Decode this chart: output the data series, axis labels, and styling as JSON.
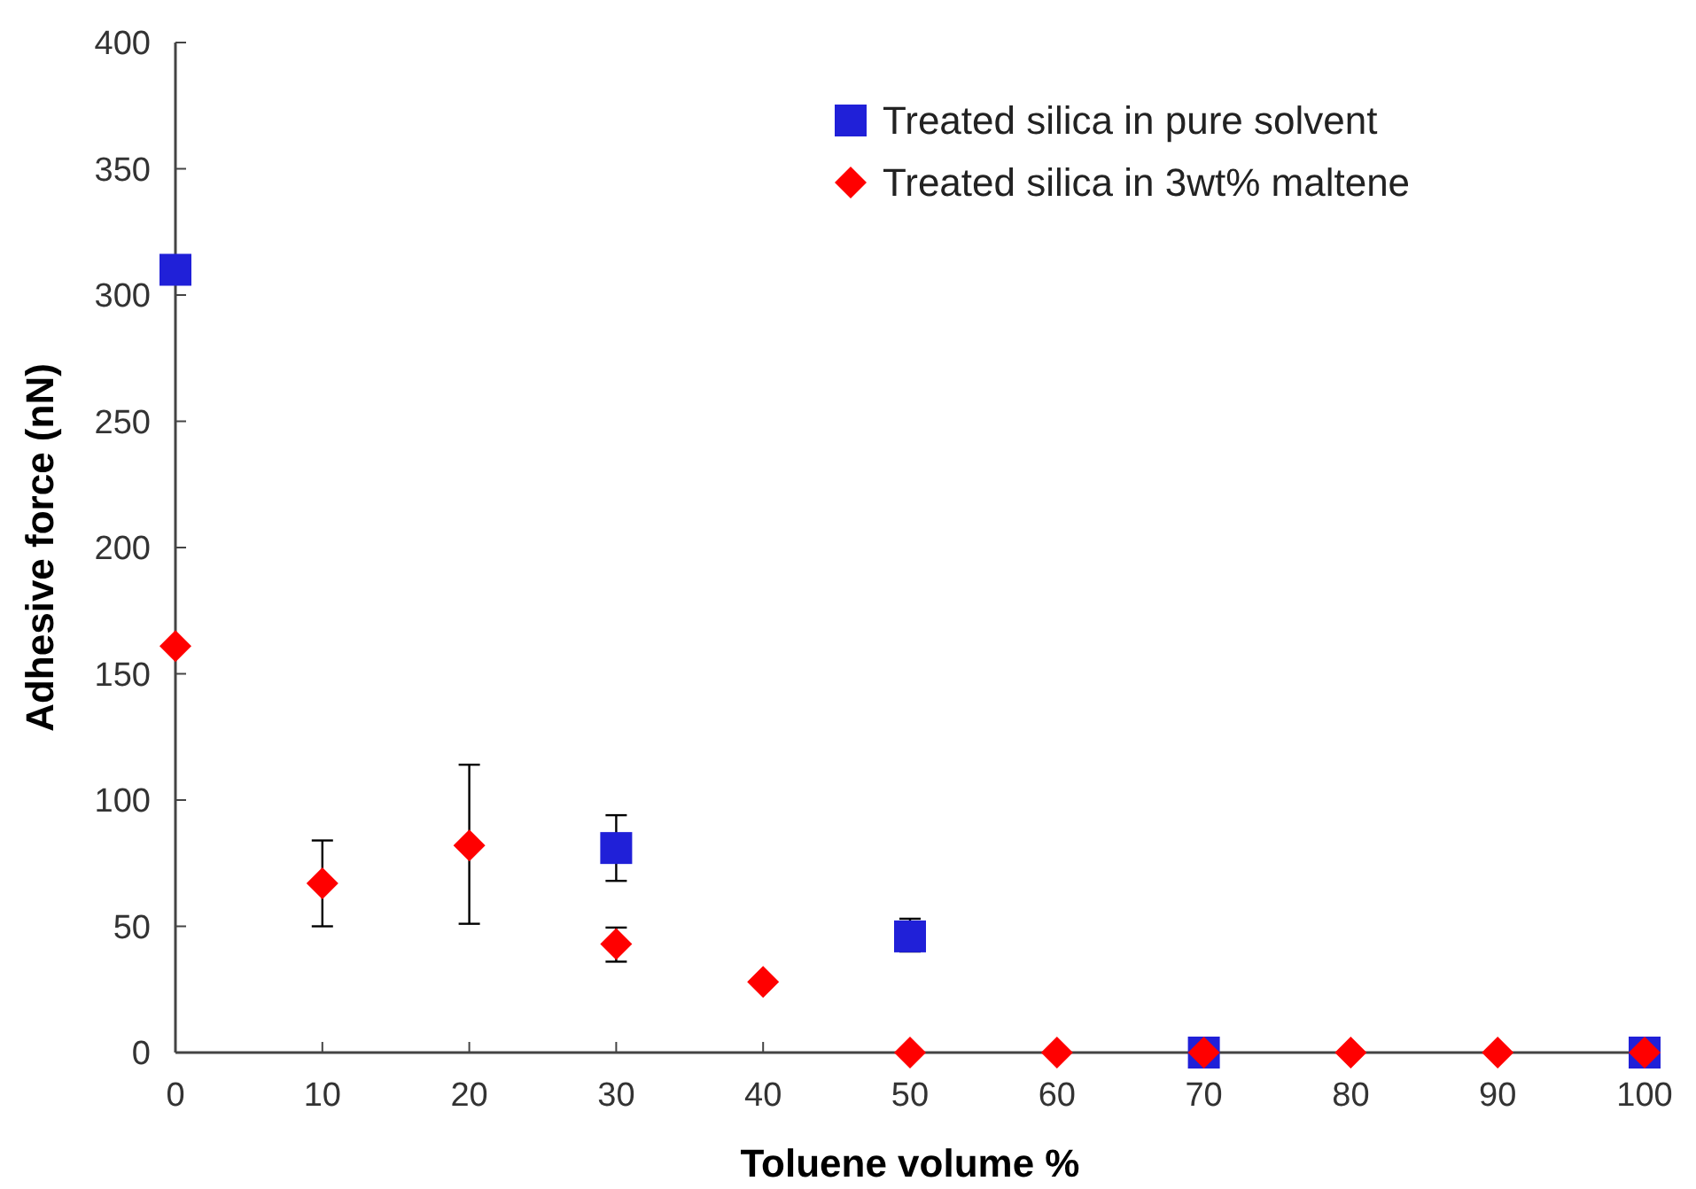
{
  "chart_data": {
    "type": "scatter",
    "xlabel": "Toluene volume %",
    "ylabel": "Adhesive force (nN)",
    "xlim": [
      0,
      100
    ],
    "xticks": [
      0,
      10,
      20,
      30,
      40,
      50,
      60,
      70,
      80,
      90,
      100
    ],
    "ylim": [
      0,
      400
    ],
    "yticks": [
      0,
      50,
      100,
      150,
      200,
      250,
      300,
      350,
      400
    ],
    "grid": false,
    "legend": "top right",
    "series": [
      {
        "name": "Treated silica in pure solvent",
        "color": "#2020d8",
        "marker": "square",
        "x": [
          0,
          30,
          50,
          70,
          100
        ],
        "values": [
          310,
          81,
          46,
          0,
          0
        ],
        "errors": [
          null,
          [
            68,
            94
          ],
          [
            40,
            53
          ],
          null,
          null
        ]
      },
      {
        "name": "Treated silica in 3wt% maltene",
        "color": "#ff0000",
        "marker": "diamond",
        "x": [
          0,
          10,
          20,
          30,
          40,
          50,
          60,
          70,
          80,
          90,
          100
        ],
        "values": [
          161,
          67,
          82,
          43,
          28,
          0,
          0,
          0,
          0,
          0,
          0
        ],
        "errors": [
          null,
          [
            50,
            84
          ],
          [
            51,
            114
          ],
          [
            36,
            49.5
          ],
          null,
          null,
          null,
          null,
          null,
          null,
          null
        ]
      }
    ]
  }
}
